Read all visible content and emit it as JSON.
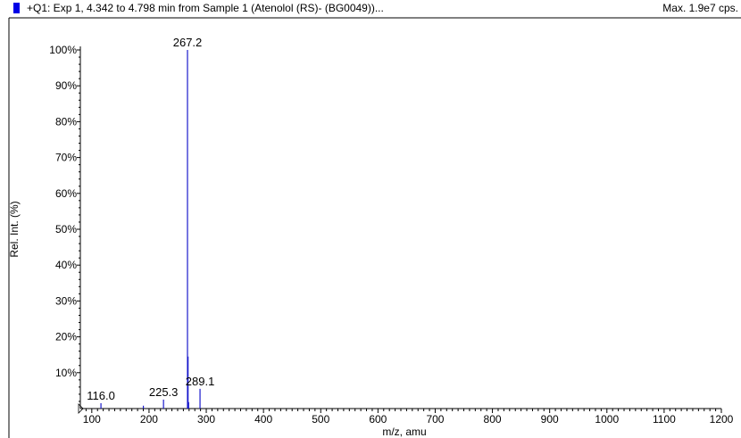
{
  "header": {
    "title": "+Q1: Exp 1, 4.342 to 4.798 min from Sample 1 (Atenolol (RS)- (BG0049))...",
    "max_label": "Max. 1.9e7 cps."
  },
  "colors": {
    "peak": "#1a1acc",
    "marker": "#0000e6",
    "axis": "#000000"
  },
  "chart_data": {
    "type": "bar",
    "title": "+Q1: Exp 1, 4.342 to 4.798 min from Sample 1 (Atenolol (RS)- (BG0049))...",
    "xlabel": "m/z, amu",
    "ylabel": "Rel. Int. (%)",
    "xlim": [
      80,
      1200
    ],
    "ylim": [
      0,
      100
    ],
    "x_ticks": [
      100,
      200,
      300,
      400,
      500,
      600,
      700,
      800,
      900,
      1000,
      1100,
      1200
    ],
    "y_ticks": [
      10,
      20,
      30,
      40,
      50,
      60,
      70,
      80,
      90,
      100
    ],
    "y_tick_labels": [
      "10%",
      "20%",
      "30%",
      "40%",
      "50%",
      "60%",
      "70%",
      "80%",
      "90%",
      "100%"
    ],
    "peaks": [
      {
        "mz": 116.0,
        "rel": 1.5,
        "label": "116.0"
      },
      {
        "mz": 190.1,
        "rel": 0.8,
        "label": ""
      },
      {
        "mz": 225.3,
        "rel": 2.5,
        "label": "225.3"
      },
      {
        "mz": 267.2,
        "rel": 100,
        "label": "267.2"
      },
      {
        "mz": 268.2,
        "rel": 14.5,
        "label": ""
      },
      {
        "mz": 269.2,
        "rel": 1.8,
        "label": ""
      },
      {
        "mz": 289.1,
        "rel": 5.5,
        "label": "289.1"
      }
    ],
    "grid": false,
    "legend": "none"
  }
}
